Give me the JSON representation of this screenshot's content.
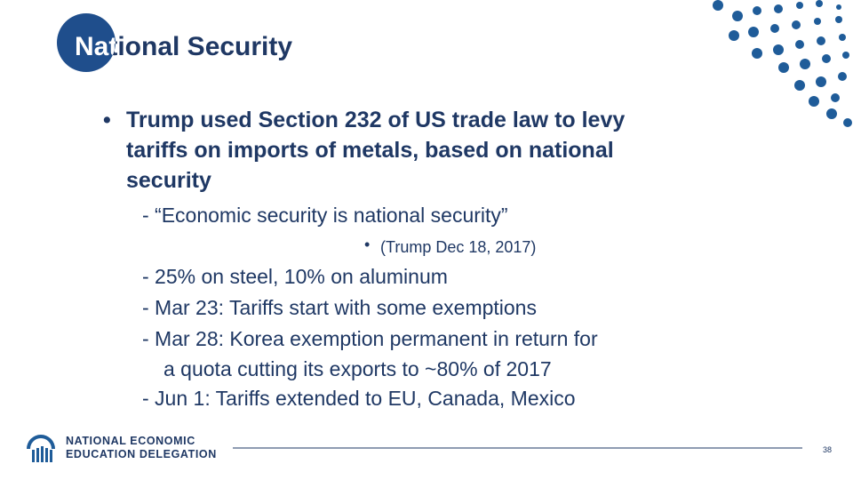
{
  "title": "National Security",
  "bullet_lines": [
    "Trump used Section 232 of US trade law to levy",
    "tariffs on imports of metals, based on national",
    "security"
  ],
  "quote": "- “Economic security is national security”",
  "source": "(Trump Dec 18, 2017)",
  "items": [
    "- 25% on steel, 10% on aluminum",
    "- Mar 23:  Tariffs start with some exemptions",
    [
      "- Mar 28:  Korea exemption permanent in return for",
      "a quota cutting its exports to ~80% of 2017"
    ],
    "- Jun 1:  Tariffs extended to EU, Canada, Mexico"
  ],
  "logo": [
    "NATIONAL ECONOMIC",
    "EDUCATION DELEGATION"
  ],
  "page_number": "38"
}
